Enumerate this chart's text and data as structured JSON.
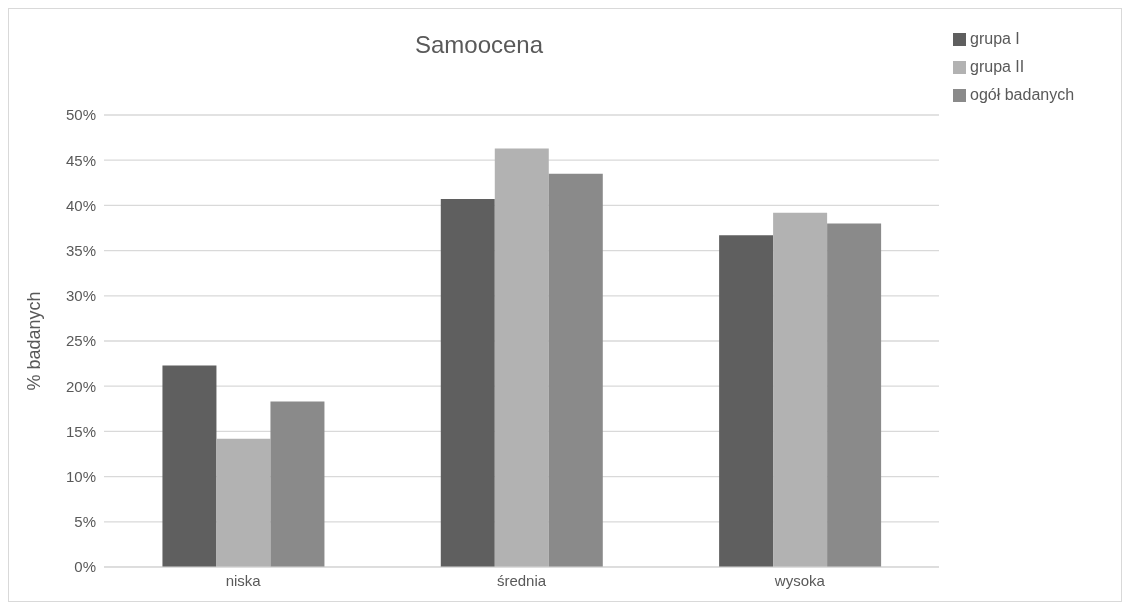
{
  "chart_data": {
    "type": "bar",
    "title": "Samoocena",
    "ylabel": "% badanych",
    "categories": [
      "niska",
      "średnia",
      "wysoka"
    ],
    "series": [
      {
        "name": "grupa I",
        "color": "#5f5f5f",
        "values": [
          22.3,
          40.7,
          36.7
        ]
      },
      {
        "name": "grupa II",
        "color": "#b2b2b2",
        "values": [
          14.2,
          46.3,
          39.2
        ]
      },
      {
        "name": "ogół badanych",
        "color": "#8a8a8a",
        "values": [
          18.3,
          43.5,
          38.0
        ]
      }
    ],
    "ylim": [
      0,
      50
    ],
    "yticks": [
      {
        "value": 0,
        "label": "0%"
      },
      {
        "value": 5,
        "label": "5%"
      },
      {
        "value": 10,
        "label": "10%"
      },
      {
        "value": 15,
        "label": "15%"
      },
      {
        "value": 20,
        "label": "20%"
      },
      {
        "value": 25,
        "label": "25%"
      },
      {
        "value": 30,
        "label": "30%"
      },
      {
        "value": 35,
        "label": "35%"
      },
      {
        "value": 40,
        "label": "40%"
      },
      {
        "value": 45,
        "label": "45%"
      },
      {
        "value": 50,
        "label": "50%"
      }
    ],
    "grid": "y",
    "legend": "top right"
  }
}
